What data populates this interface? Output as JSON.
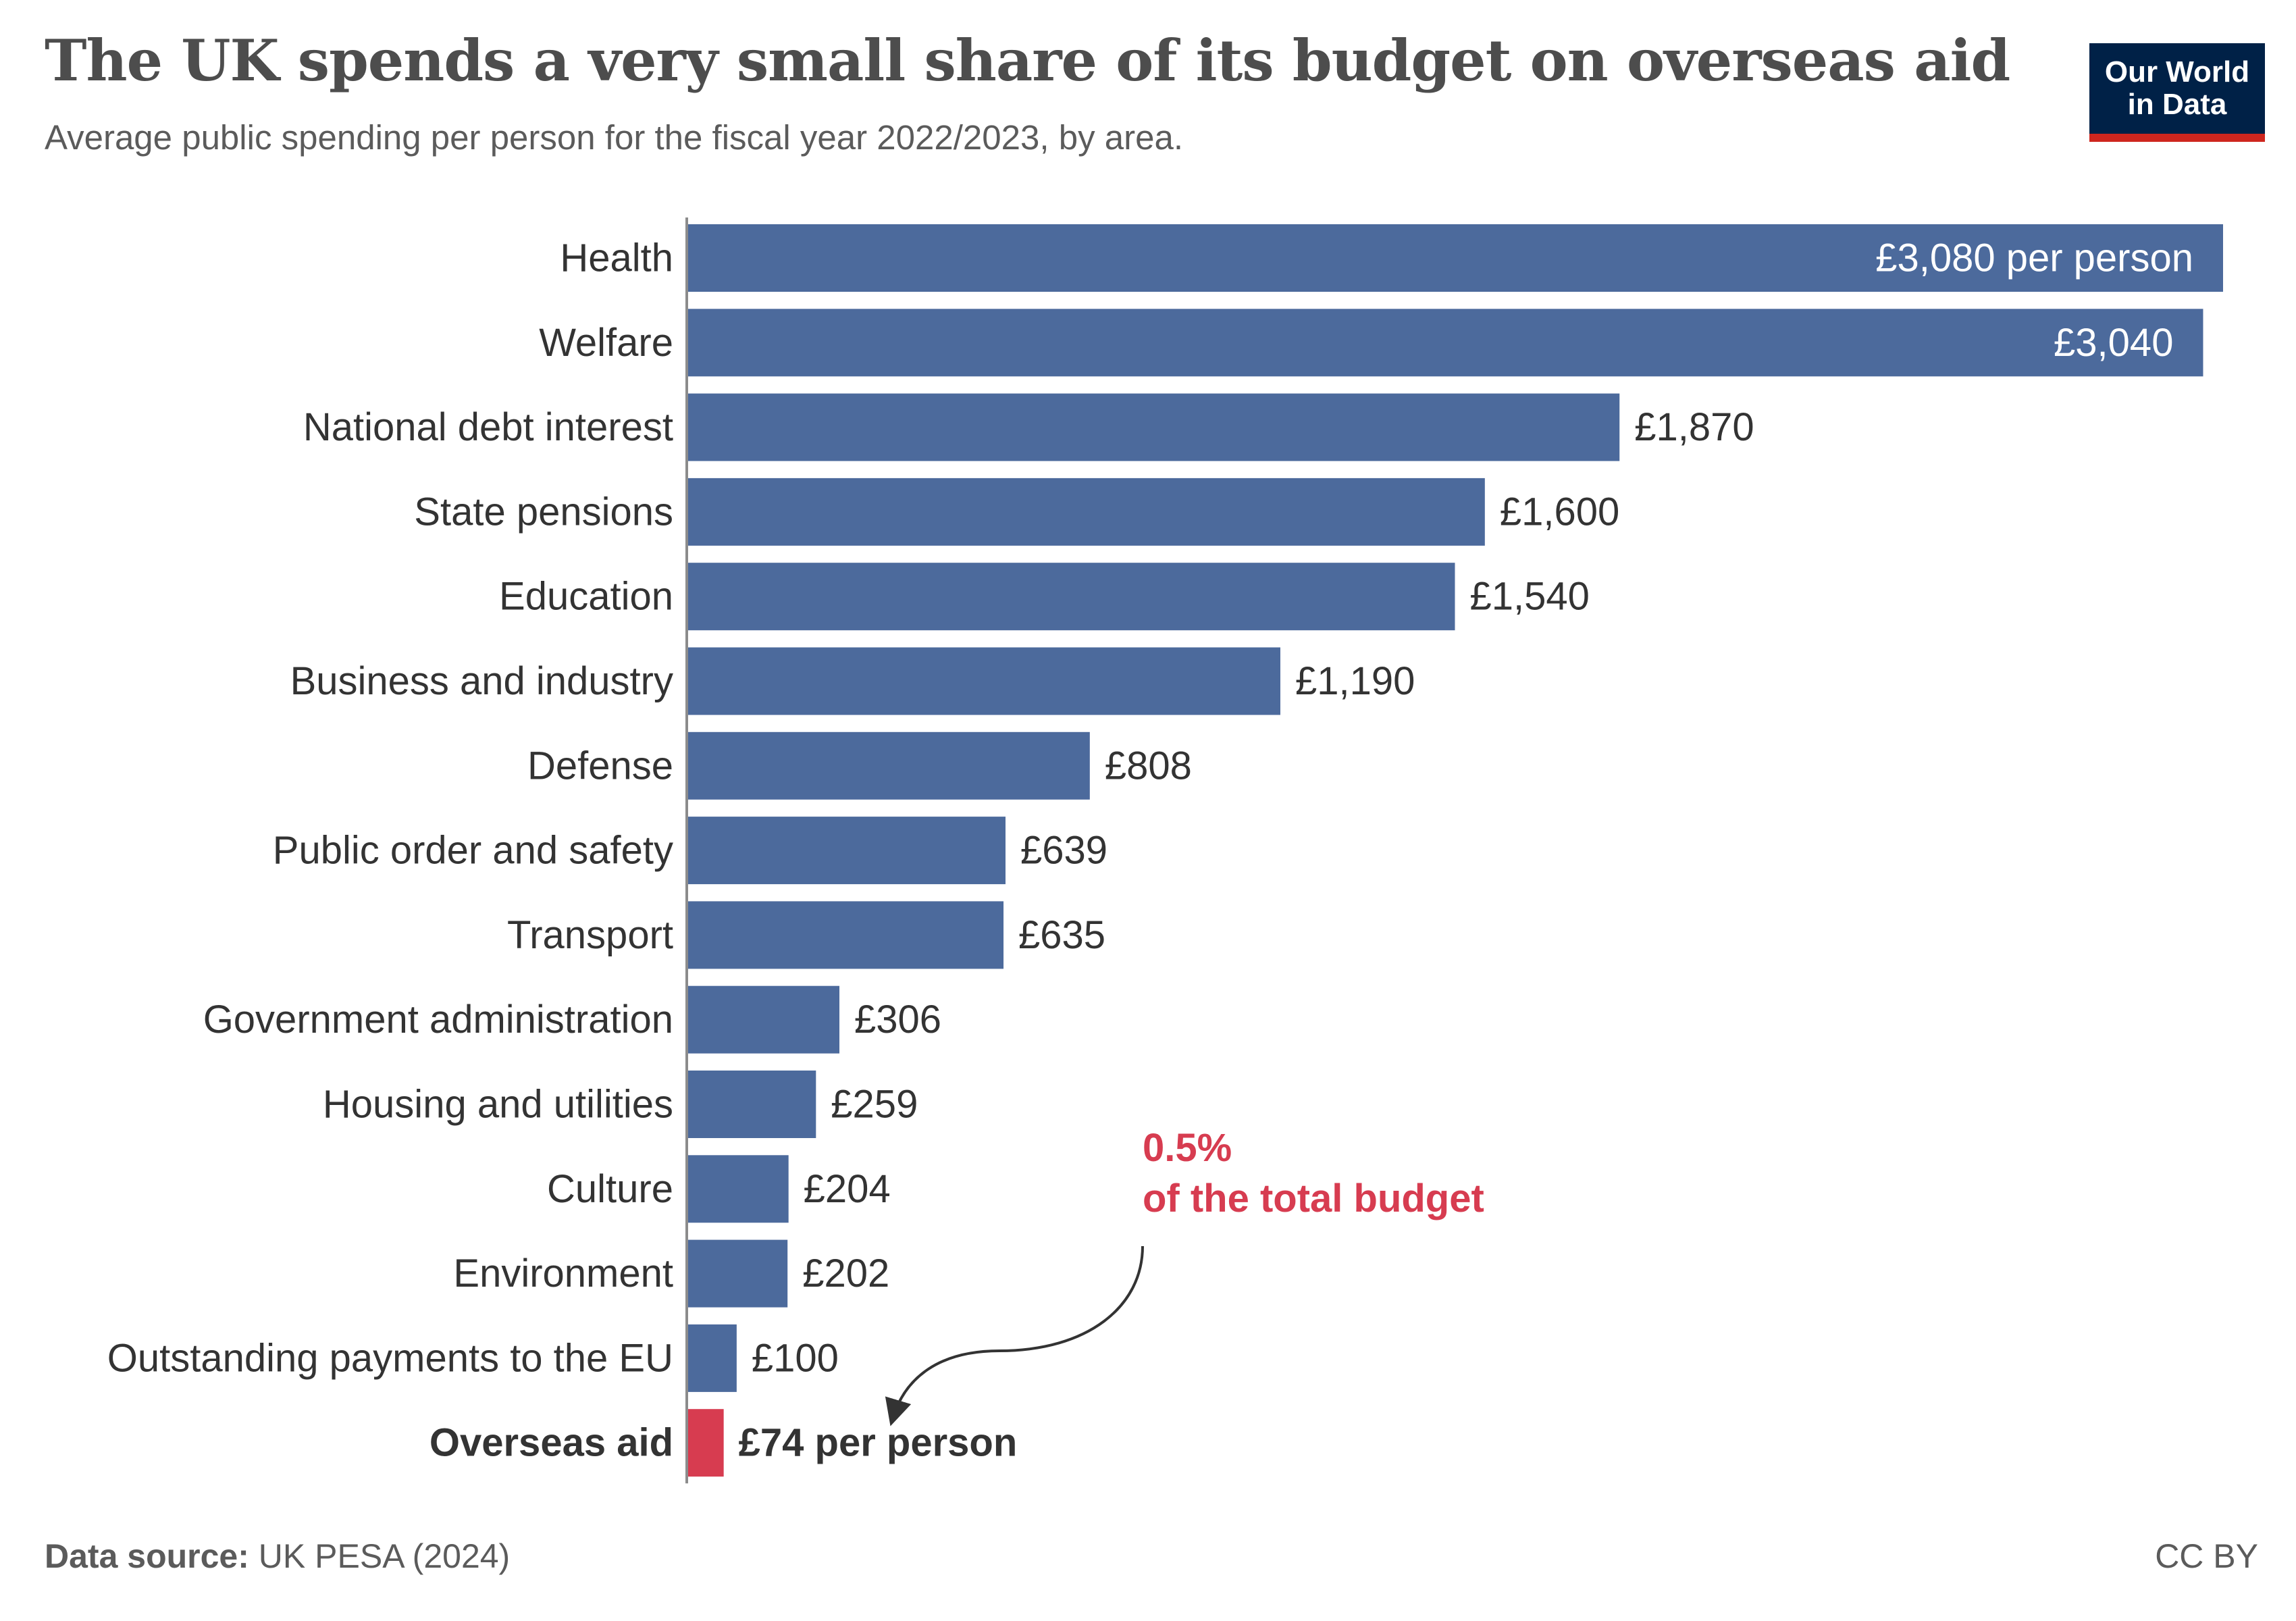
{
  "header": {
    "title": "The UK spends a very small share of its budget on overseas aid",
    "subtitle": "Average public spending per person for the fiscal year 2022/2023, by area."
  },
  "logo": {
    "line1": "Our World",
    "line2": "in Data"
  },
  "footer": {
    "source_label": "Data source:",
    "source_value": "UK PESA (2024)",
    "license": "CC BY"
  },
  "colors": {
    "bar": "#4c6a9c",
    "highlight": "#d73c50",
    "label": "#333333",
    "annotation": "#d73c50"
  },
  "chart_data": {
    "type": "bar",
    "orientation": "horizontal",
    "title": "The UK spends a very small share of its budget on overseas aid",
    "subtitle": "Average public spending per person for the fiscal year 2022/2023, by area.",
    "unit": "£ per person",
    "xlim": [
      0,
      3080
    ],
    "categories": [
      "Health",
      "Welfare",
      "National debt interest",
      "State pensions",
      "Education",
      "Business and industry",
      "Defense",
      "Public order and safety",
      "Transport",
      "Government administration",
      "Housing and utilities",
      "Culture",
      "Environment",
      "Outstanding payments to the EU",
      "Overseas aid"
    ],
    "values": [
      3080,
      3040,
      1870,
      1600,
      1540,
      1190,
      808,
      639,
      635,
      306,
      259,
      204,
      202,
      100,
      74
    ],
    "value_labels": [
      "£3,080 per person",
      "£3,040",
      "£1,870",
      "£1,600",
      "£1,540",
      "£1,190",
      "£808",
      "£639",
      "£635",
      "£306",
      "£259",
      "£204",
      "£202",
      "£100",
      "£74 per person"
    ],
    "highlight_category": "Overseas aid",
    "annotation": {
      "line1": "0.5%",
      "line2": "of the total budget"
    }
  }
}
